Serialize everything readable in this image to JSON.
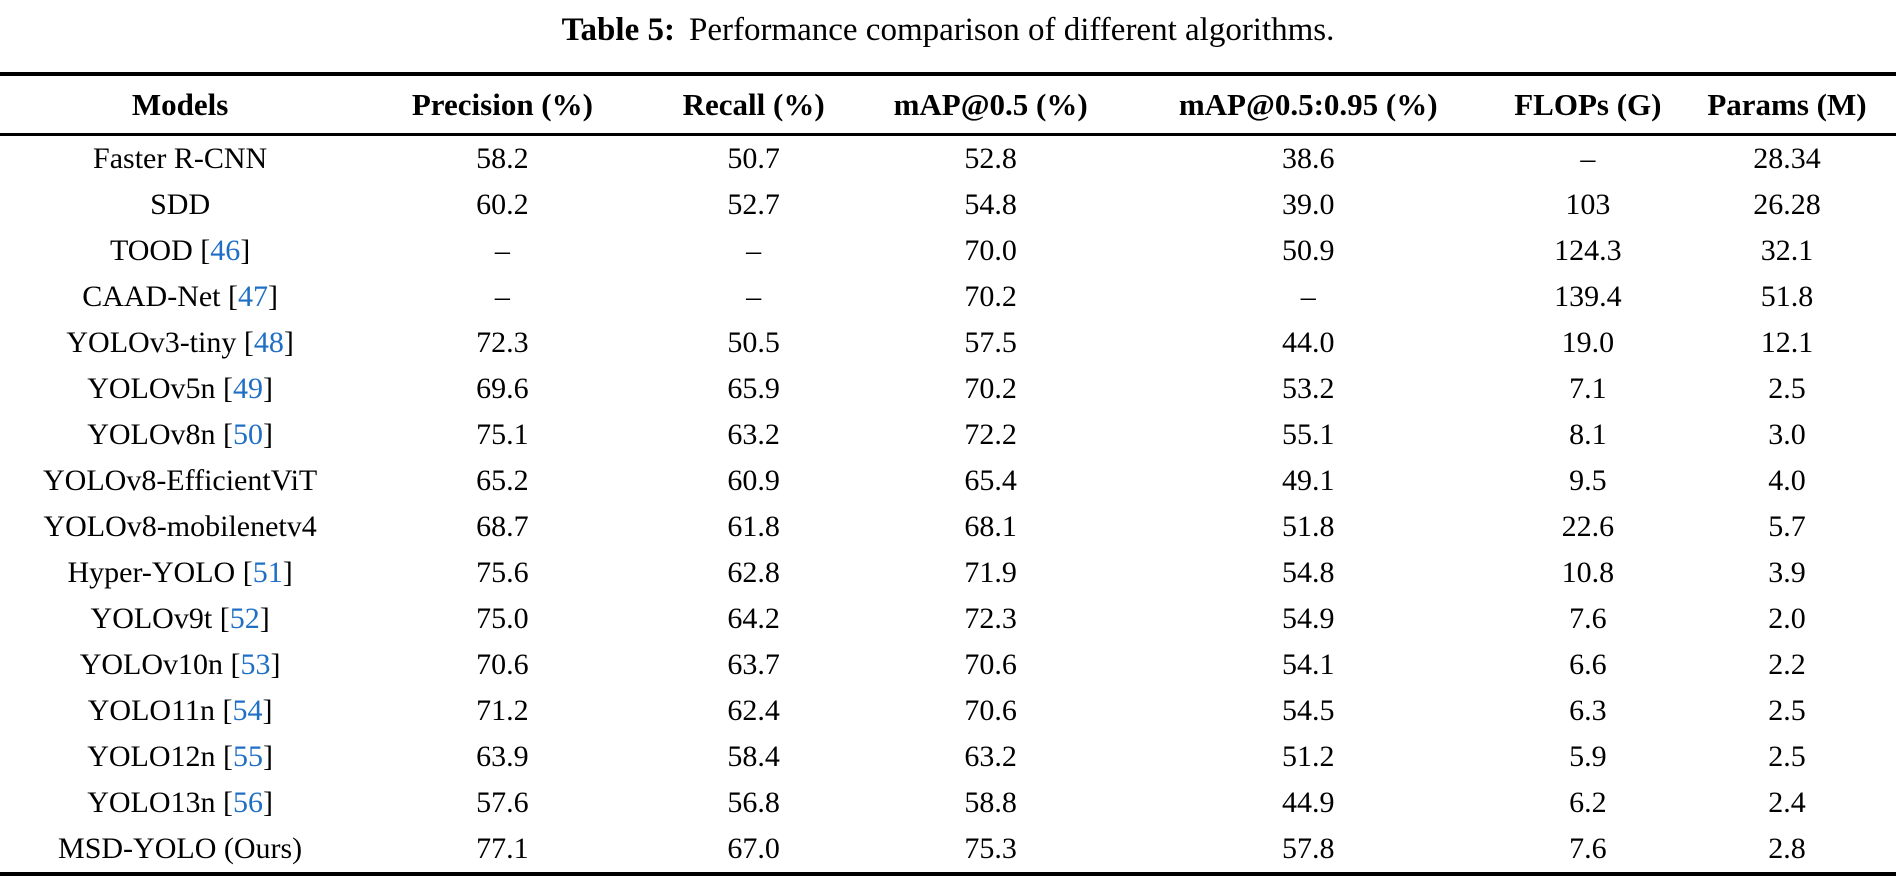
{
  "caption": {
    "label": "Table 5:",
    "text": "Performance comparison of different algorithms."
  },
  "colors": {
    "citation_blue": "#1f6fc5",
    "text": "#000000",
    "rule": "#000000",
    "background": "#ffffff"
  },
  "table": {
    "columns": [
      "Models",
      "Precision (%)",
      "Recall (%)",
      "mAP@0.5 (%)",
      "mAP@0.5:0.95 (%)",
      "FLOPs (G)",
      "Params (M)"
    ],
    "rows": [
      {
        "model": "Faster R-CNN",
        "cite": "",
        "values": [
          "58.2",
          "50.7",
          "52.8",
          "38.6",
          "–",
          "28.34"
        ]
      },
      {
        "model": "SDD",
        "cite": "",
        "values": [
          "60.2",
          "52.7",
          "54.8",
          "39.0",
          "103",
          "26.28"
        ]
      },
      {
        "model": "TOOD",
        "cite": "46",
        "values": [
          "–",
          "–",
          "70.0",
          "50.9",
          "124.3",
          "32.1"
        ]
      },
      {
        "model": "CAAD-Net",
        "cite": "47",
        "values": [
          "–",
          "–",
          "70.2",
          "–",
          "139.4",
          "51.8"
        ]
      },
      {
        "model": "YOLOv3-tiny",
        "cite": "48",
        "values": [
          "72.3",
          "50.5",
          "57.5",
          "44.0",
          "19.0",
          "12.1"
        ]
      },
      {
        "model": "YOLOv5n",
        "cite": "49",
        "values": [
          "69.6",
          "65.9",
          "70.2",
          "53.2",
          "7.1",
          "2.5"
        ]
      },
      {
        "model": "YOLOv8n",
        "cite": "50",
        "values": [
          "75.1",
          "63.2",
          "72.2",
          "55.1",
          "8.1",
          "3.0"
        ]
      },
      {
        "model": "YOLOv8-EfficientViT",
        "cite": "",
        "values": [
          "65.2",
          "60.9",
          "65.4",
          "49.1",
          "9.5",
          "4.0"
        ]
      },
      {
        "model": "YOLOv8-mobilenetv4",
        "cite": "",
        "values": [
          "68.7",
          "61.8",
          "68.1",
          "51.8",
          "22.6",
          "5.7"
        ]
      },
      {
        "model": "Hyper-YOLO",
        "cite": "51",
        "values": [
          "75.6",
          "62.8",
          "71.9",
          "54.8",
          "10.8",
          "3.9"
        ]
      },
      {
        "model": "YOLOv9t",
        "cite": "52",
        "values": [
          "75.0",
          "64.2",
          "72.3",
          "54.9",
          "7.6",
          "2.0"
        ]
      },
      {
        "model": "YOLOv10n",
        "cite": "53",
        "values": [
          "70.6",
          "63.7",
          "70.6",
          "54.1",
          "6.6",
          "2.2"
        ]
      },
      {
        "model": "YOLO11n",
        "cite": "54",
        "values": [
          "71.2",
          "62.4",
          "70.6",
          "54.5",
          "6.3",
          "2.5"
        ]
      },
      {
        "model": "YOLO12n",
        "cite": "55",
        "values": [
          "63.9",
          "58.4",
          "63.2",
          "51.2",
          "5.9",
          "2.5"
        ]
      },
      {
        "model": "YOLO13n",
        "cite": "56",
        "values": [
          "57.6",
          "56.8",
          "58.8",
          "44.9",
          "6.2",
          "2.4"
        ]
      },
      {
        "model": "MSD-YOLO (Ours)",
        "cite": "",
        "values": [
          "77.1",
          "67.0",
          "75.3",
          "57.8",
          "7.6",
          "2.8"
        ]
      }
    ],
    "column_widths_pct": [
      19,
      15,
      11.5,
      13.5,
      20,
      9.5,
      11.5
    ]
  }
}
